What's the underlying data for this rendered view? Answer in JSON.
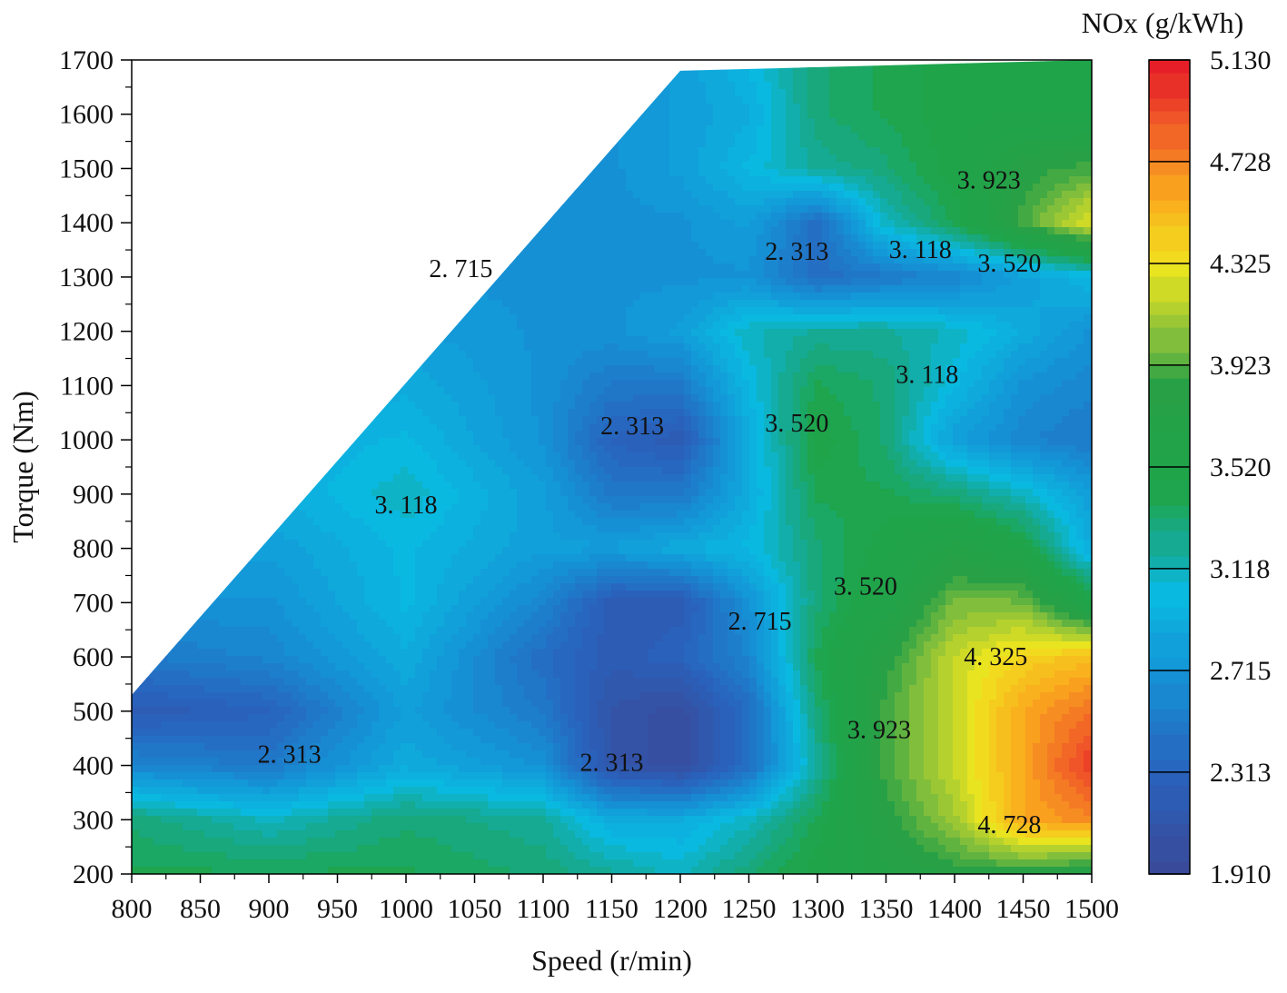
{
  "chart_data": {
    "type": "heatmap",
    "subtype": "filled-contour",
    "title": "",
    "xlabel": "Speed (r/min)",
    "ylabel": "Torque (Nm)",
    "colorbar_title": "NOx (g/kWh)",
    "xlim": [
      800,
      1500
    ],
    "ylim": [
      200,
      1700
    ],
    "x_ticks": [
      "800",
      "850",
      "900",
      "950",
      "1000",
      "1050",
      "1100",
      "1150",
      "1200",
      "1250",
      "1300",
      "1350",
      "1400",
      "1450",
      "1500"
    ],
    "y_ticks": [
      "200",
      "300",
      "400",
      "500",
      "600",
      "700",
      "800",
      "900",
      "1000",
      "1100",
      "1200",
      "1300",
      "1400",
      "1500",
      "1600",
      "1700"
    ],
    "colorbar_range": [
      1.91,
      5.13
    ],
    "colorbar_ticks": [
      "1.910",
      "2.313",
      "2.715",
      "3.118",
      "3.520",
      "3.923",
      "4.325",
      "4.728",
      "5.130"
    ],
    "colors": {
      "low": "#3a4a9a",
      "mid_low": "#14a6e0",
      "mid": "#1ea84a",
      "mid_high": "#f4e21a",
      "high": "#e8202a"
    },
    "grid": false,
    "legend": "right",
    "annotations": [
      {
        "text": "2. 313",
        "x": 1285,
        "y": 1347
      },
      {
        "text": "3. 118",
        "x": 1375,
        "y": 1350
      },
      {
        "text": "3. 923",
        "x": 1425,
        "y": 1478
      },
      {
        "text": "3. 520",
        "x": 1440,
        "y": 1325
      },
      {
        "text": "2. 715",
        "x": 1040,
        "y": 1315
      },
      {
        "text": "3. 118",
        "x": 1380,
        "y": 1120
      },
      {
        "text": "2. 313",
        "x": 1165,
        "y": 1025
      },
      {
        "text": "3. 520",
        "x": 1285,
        "y": 1030
      },
      {
        "text": "3. 118",
        "x": 1000,
        "y": 880
      },
      {
        "text": "3. 520",
        "x": 1335,
        "y": 730
      },
      {
        "text": "2. 715",
        "x": 1258,
        "y": 665
      },
      {
        "text": "4. 325",
        "x": 1430,
        "y": 600
      },
      {
        "text": "2. 313",
        "x": 915,
        "y": 420
      },
      {
        "text": "2. 313",
        "x": 1150,
        "y": 405
      },
      {
        "text": "3. 923",
        "x": 1345,
        "y": 465
      },
      {
        "text": "4. 728",
        "x": 1440,
        "y": 290
      }
    ],
    "boundary": [
      [
        800,
        530
      ],
      [
        1200,
        1680
      ],
      [
        1500,
        1700
      ]
    ],
    "z_grid": {
      "x": [
        800,
        900,
        1000,
        1100,
        1150,
        1200,
        1250,
        1300,
        1350,
        1400,
        1450,
        1500
      ],
      "y": [
        200,
        300,
        400,
        500,
        600,
        700,
        800,
        900,
        1000,
        1100,
        1200,
        1300,
        1400,
        1500,
        1600,
        1700
      ],
      "values": [
        [
          3.4,
          3.4,
          3.4,
          3.3,
          3.2,
          3.1,
          3.3,
          3.5,
          3.7,
          3.8,
          3.8,
          3.7
        ],
        [
          3.3,
          3.1,
          3.3,
          3.2,
          2.9,
          2.9,
          3.1,
          3.4,
          3.8,
          4.1,
          4.6,
          4.7
        ],
        [
          2.6,
          2.5,
          2.9,
          2.7,
          2.1,
          2.0,
          2.4,
          3.2,
          3.9,
          4.2,
          4.6,
          5.0
        ],
        [
          2.2,
          2.3,
          2.8,
          2.5,
          2.1,
          2.0,
          2.4,
          3.3,
          3.9,
          4.2,
          4.6,
          4.8
        ],
        [
          2.5,
          2.6,
          2.9,
          2.4,
          2.2,
          2.3,
          2.6,
          3.4,
          3.8,
          4.2,
          4.4,
          4.5
        ],
        [
          2.7,
          2.7,
          3.0,
          2.6,
          2.2,
          2.2,
          2.7,
          3.3,
          3.6,
          4.0,
          4.0,
          3.5
        ],
        [
          2.8,
          2.8,
          3.0,
          2.8,
          2.8,
          2.9,
          3.0,
          3.3,
          3.5,
          3.7,
          3.5,
          2.9
        ],
        [
          2.8,
          2.9,
          3.1,
          2.8,
          2.5,
          2.5,
          2.9,
          3.4,
          3.4,
          3.3,
          3.1,
          2.8
        ],
        [
          2.8,
          2.9,
          3.0,
          2.7,
          2.3,
          2.2,
          2.9,
          3.5,
          3.3,
          2.8,
          2.6,
          2.5
        ],
        [
          2.8,
          2.8,
          2.9,
          2.7,
          2.5,
          2.5,
          3.0,
          3.4,
          3.3,
          3.0,
          2.7,
          2.6
        ],
        [
          2.8,
          2.8,
          2.8,
          2.7,
          2.7,
          2.8,
          3.1,
          3.2,
          3.2,
          3.1,
          2.9,
          2.7
        ],
        [
          2.8,
          2.8,
          2.7,
          2.7,
          2.7,
          2.7,
          2.7,
          2.4,
          2.5,
          2.6,
          2.8,
          3.0
        ],
        [
          2.8,
          2.8,
          2.7,
          2.7,
          2.7,
          2.7,
          2.8,
          2.4,
          3.1,
          3.4,
          3.9,
          4.3
        ],
        [
          2.8,
          2.8,
          2.7,
          2.7,
          2.7,
          2.8,
          3.0,
          3.2,
          3.3,
          3.5,
          3.8,
          3.9
        ],
        [
          2.8,
          2.8,
          2.7,
          2.7,
          2.7,
          2.8,
          2.9,
          3.3,
          3.4,
          3.5,
          3.5,
          3.5
        ],
        [
          2.8,
          2.8,
          2.7,
          2.7,
          2.7,
          2.8,
          3.0,
          3.3,
          3.4,
          3.5,
          3.5,
          3.5
        ]
      ]
    }
  }
}
